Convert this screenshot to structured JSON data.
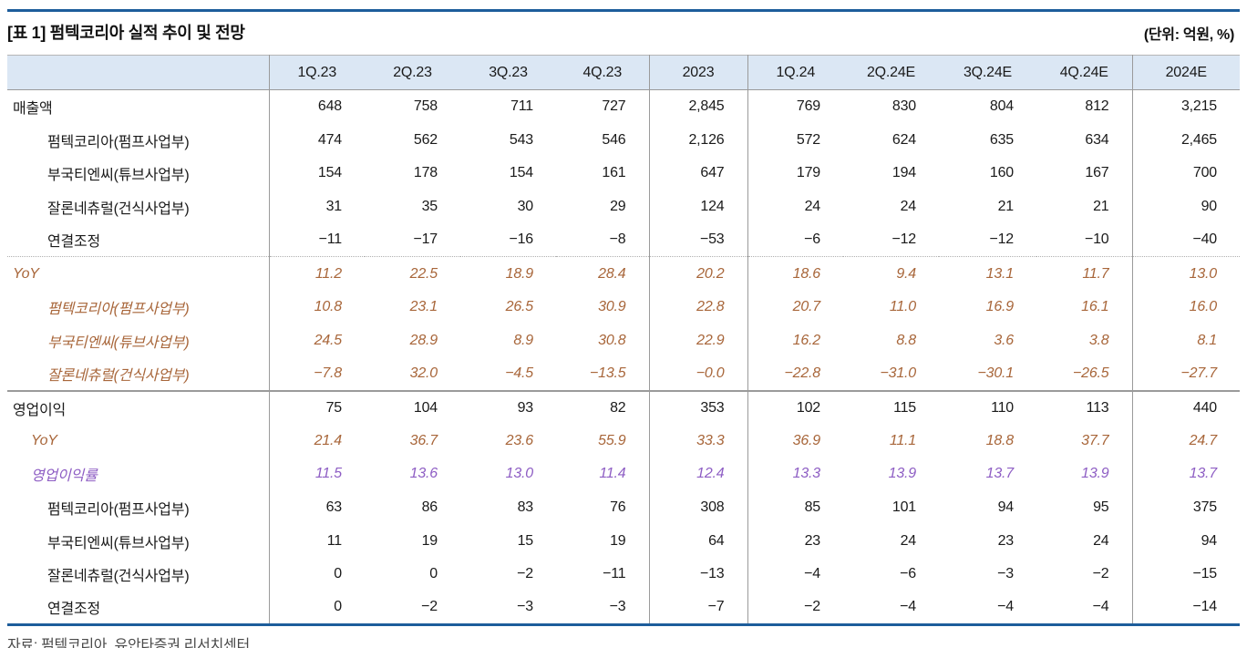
{
  "page": {
    "title": "[표 1] 펌텍코리아 실적 추이 및 전망",
    "unit_label": "(단위: 억원, %)",
    "source": "자료: 펌텍코리아, 유안타증권 리서치센터"
  },
  "colors": {
    "accent_rule": "#1d5d9b",
    "header_bg": "#dbe7f4",
    "yoy_text": "#a8663a",
    "margin_text": "#8e5ec4",
    "grid_line": "#9a9a9a"
  },
  "table": {
    "columns": [
      "",
      "1Q.23",
      "2Q.23",
      "3Q.23",
      "4Q.23",
      "2023",
      "1Q.24",
      "2Q.24E",
      "3Q.24E",
      "4Q.24E",
      "2024E"
    ],
    "rows": [
      {
        "label": "매출액",
        "indent": 0,
        "style": "normal",
        "values": [
          "648",
          "758",
          "711",
          "727",
          "2,845",
          "769",
          "830",
          "804",
          "812",
          "3,215"
        ]
      },
      {
        "label": "펌텍코리아(펌프사업부)",
        "indent": 2,
        "style": "normal",
        "values": [
          "474",
          "562",
          "543",
          "546",
          "2,126",
          "572",
          "624",
          "635",
          "634",
          "2,465"
        ]
      },
      {
        "label": "부국티엔씨(튜브사업부)",
        "indent": 2,
        "style": "normal",
        "values": [
          "154",
          "178",
          "154",
          "161",
          "647",
          "179",
          "194",
          "160",
          "167",
          "700"
        ]
      },
      {
        "label": "잘론네츄럴(건식사업부)",
        "indent": 2,
        "style": "normal",
        "values": [
          "31",
          "35",
          "30",
          "29",
          "124",
          "24",
          "24",
          "21",
          "21",
          "90"
        ]
      },
      {
        "label": "연결조정",
        "indent": 2,
        "style": "normal",
        "sep_after": "dotted",
        "values": [
          "−11",
          "−17",
          "−16",
          "−8",
          "−53",
          "−6",
          "−12",
          "−12",
          "−10",
          "−40"
        ]
      },
      {
        "label": "YoY",
        "indent": 0,
        "style": "yoy",
        "values": [
          "11.2",
          "22.5",
          "18.9",
          "28.4",
          "20.2",
          "18.6",
          "9.4",
          "13.1",
          "11.7",
          "13.0"
        ]
      },
      {
        "label": "펌텍코리아(펌프사업부)",
        "indent": 2,
        "style": "yoy",
        "values": [
          "10.8",
          "23.1",
          "26.5",
          "30.9",
          "22.8",
          "20.7",
          "11.0",
          "16.9",
          "16.1",
          "16.0"
        ]
      },
      {
        "label": "부국티엔씨(튜브사업부)",
        "indent": 2,
        "style": "yoy",
        "values": [
          "24.5",
          "28.9",
          "8.9",
          "30.8",
          "22.9",
          "16.2",
          "8.8",
          "3.6",
          "3.8",
          "8.1"
        ]
      },
      {
        "label": "잘론네츄럴(건식사업부)",
        "indent": 2,
        "style": "yoy",
        "sep_after": "solid",
        "values": [
          "−7.8",
          "32.0",
          "−4.5",
          "−13.5",
          "−0.0",
          "−22.8",
          "−31.0",
          "−30.1",
          "−26.5",
          "−27.7"
        ]
      },
      {
        "label": "영업이익",
        "indent": 0,
        "style": "normal",
        "values": [
          "75",
          "104",
          "93",
          "82",
          "353",
          "102",
          "115",
          "110",
          "113",
          "440"
        ]
      },
      {
        "label": "YoY",
        "indent": 1,
        "style": "yoy",
        "values": [
          "21.4",
          "36.7",
          "23.6",
          "55.9",
          "33.3",
          "36.9",
          "11.1",
          "18.8",
          "37.7",
          "24.7"
        ]
      },
      {
        "label": "영업이익률",
        "indent": 1,
        "style": "margin",
        "values": [
          "11.5",
          "13.6",
          "13.0",
          "11.4",
          "12.4",
          "13.3",
          "13.9",
          "13.7",
          "13.9",
          "13.7"
        ]
      },
      {
        "label": "펌텍코리아(펌프사업부)",
        "indent": 2,
        "style": "normal",
        "values": [
          "63",
          "86",
          "83",
          "76",
          "308",
          "85",
          "101",
          "94",
          "95",
          "375"
        ]
      },
      {
        "label": "부국티엔씨(튜브사업부)",
        "indent": 2,
        "style": "normal",
        "values": [
          "11",
          "19",
          "15",
          "19",
          "64",
          "23",
          "24",
          "23",
          "24",
          "94"
        ]
      },
      {
        "label": "잘론네츄럴(건식사업부)",
        "indent": 2,
        "style": "normal",
        "values": [
          "0",
          "0",
          "−2",
          "−11",
          "−13",
          "−4",
          "−6",
          "−3",
          "−2",
          "−15"
        ]
      },
      {
        "label": "연결조정",
        "indent": 2,
        "style": "normal",
        "values": [
          "0",
          "−2",
          "−3",
          "−3",
          "−7",
          "−2",
          "−4",
          "−4",
          "−4",
          "−14"
        ]
      }
    ]
  }
}
